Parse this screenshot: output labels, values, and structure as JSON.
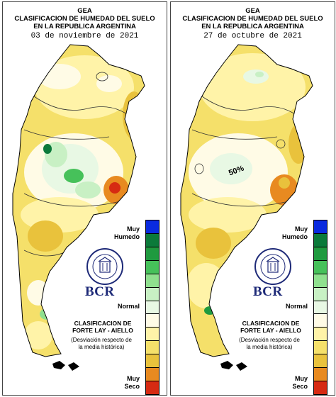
{
  "panels": [
    {
      "title_line1": "GEA",
      "title_line2": "CLASIFICACION DE HUMEDAD DEL SUELO",
      "title_line3": "EN LA REPUBLICA ARGENTINA",
      "date": "03 de noviembre de 2021",
      "map_annotation": ""
    },
    {
      "title_line1": "GEA",
      "title_line2": "CLASIFICACION DE HUMEDAD DEL SUELO",
      "title_line3": "EN LA REPUBLICA ARGENTINA",
      "date": "27 de octubre de 2021",
      "map_annotation": "50%"
    }
  ],
  "legend": {
    "label_top_1": "Muy",
    "label_top_2": "Humedo",
    "label_mid": "Normal",
    "label_bottom_1": "Muy",
    "label_bottom_2": "Seco",
    "colors": [
      "#0a2adf",
      "#0b7a3a",
      "#1f9a3f",
      "#46c15a",
      "#8fe08e",
      "#c8f0c4",
      "#e8f8e4",
      "#fffbe6",
      "#fff3a8",
      "#f5e06a",
      "#e9c23c",
      "#e88a20",
      "#d62a12"
    ]
  },
  "logo": {
    "seal_text": "BOLSA DE COMERCIO DE ROSARIO",
    "brand": "BCR"
  },
  "classification": {
    "line1": "CLASIFICACION DE",
    "line2": "FORTE LAY - AIELLO",
    "note_line1": "(Desviación respecto de",
    "note_line2": "la media histórica)"
  }
}
